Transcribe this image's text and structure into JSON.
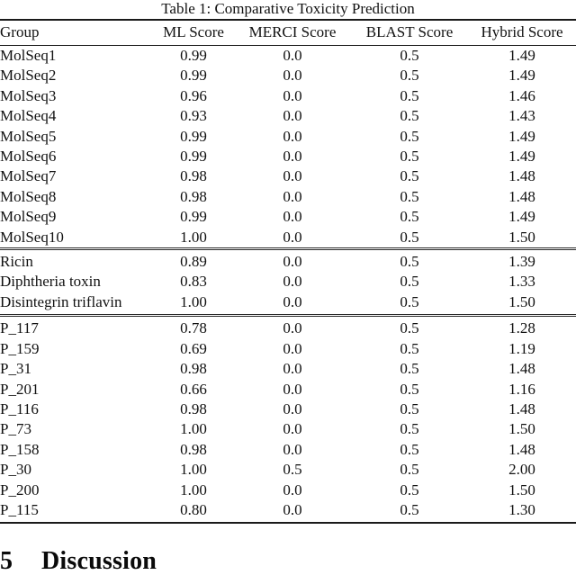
{
  "table": {
    "caption": "Table 1: Comparative Toxicity Prediction",
    "headers": [
      "Group",
      "ML Score",
      "MERCI Score",
      "BLAST Score",
      "Hybrid Score"
    ],
    "groups": [
      {
        "name": "molseq-group",
        "rows": [
          [
            "MolSeq1",
            "0.99",
            "0.0",
            "0.5",
            "1.49"
          ],
          [
            "MolSeq2",
            "0.99",
            "0.0",
            "0.5",
            "1.49"
          ],
          [
            "MolSeq3",
            "0.96",
            "0.0",
            "0.5",
            "1.46"
          ],
          [
            "MolSeq4",
            "0.93",
            "0.0",
            "0.5",
            "1.43"
          ],
          [
            "MolSeq5",
            "0.99",
            "0.0",
            "0.5",
            "1.49"
          ],
          [
            "MolSeq6",
            "0.99",
            "0.0",
            "0.5",
            "1.49"
          ],
          [
            "MolSeq7",
            "0.98",
            "0.0",
            "0.5",
            "1.48"
          ],
          [
            "MolSeq8",
            "0.98",
            "0.0",
            "0.5",
            "1.48"
          ],
          [
            "MolSeq9",
            "0.99",
            "0.0",
            "0.5",
            "1.49"
          ],
          [
            "MolSeq10",
            "1.00",
            "0.0",
            "0.5",
            "1.50"
          ]
        ]
      },
      {
        "name": "known-toxins-group",
        "rows": [
          [
            "Ricin",
            "0.89",
            "0.0",
            "0.5",
            "1.39"
          ],
          [
            "Diphtheria toxin",
            "0.83",
            "0.0",
            "0.5",
            "1.33"
          ],
          [
            "Disintegrin triflavin",
            "1.00",
            "0.0",
            "0.5",
            "1.50"
          ]
        ]
      },
      {
        "name": "p-sequences-group",
        "rows": [
          [
            "P_117",
            "0.78",
            "0.0",
            "0.5",
            "1.28"
          ],
          [
            "P_159",
            "0.69",
            "0.0",
            "0.5",
            "1.19"
          ],
          [
            "P_31",
            "0.98",
            "0.0",
            "0.5",
            "1.48"
          ],
          [
            "P_201",
            "0.66",
            "0.0",
            "0.5",
            "1.16"
          ],
          [
            "P_116",
            "0.98",
            "0.0",
            "0.5",
            "1.48"
          ],
          [
            "P_73",
            "1.00",
            "0.0",
            "0.5",
            "1.50"
          ],
          [
            "P_158",
            "0.98",
            "0.0",
            "0.5",
            "1.48"
          ],
          [
            "P_30",
            "1.00",
            "0.5",
            "0.5",
            "2.00"
          ],
          [
            "P_200",
            "1.00",
            "0.0",
            "0.5",
            "1.50"
          ],
          [
            "P_115",
            "0.80",
            "0.0",
            "0.5",
            "1.30"
          ]
        ]
      }
    ]
  },
  "section": {
    "number": "5",
    "title": "Discussion"
  },
  "colors": {
    "background": "#ffffff",
    "text": "#111111",
    "rule": "#1a1a1a"
  }
}
